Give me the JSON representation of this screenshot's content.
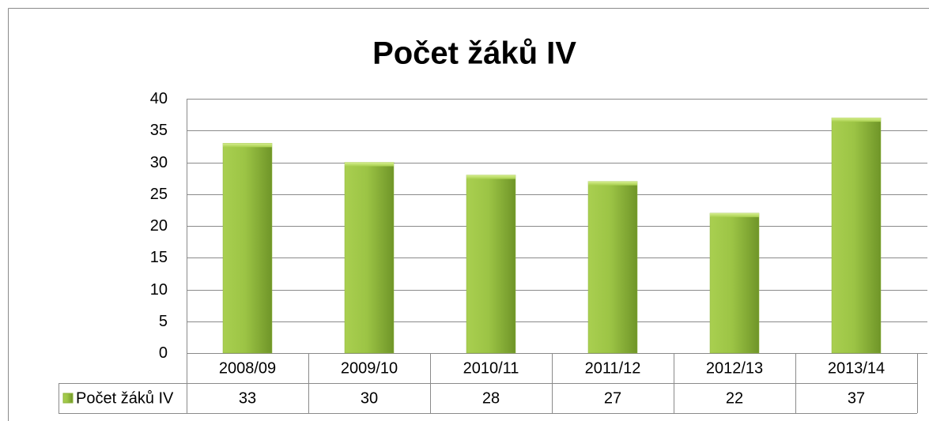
{
  "chart_data": {
    "type": "bar",
    "title": "Počet žáků IV",
    "categories": [
      "2008/09",
      "2009/10",
      "2010/11",
      "2011/12",
      "2012/13",
      "2013/14"
    ],
    "series": [
      {
        "name": "Počet žáků IV",
        "color": "#8db33a",
        "values": [
          33,
          30,
          28,
          27,
          22,
          37
        ]
      }
    ],
    "ylim": [
      0,
      40
    ],
    "yticks": [
      0,
      5,
      10,
      15,
      20,
      25,
      30,
      35,
      40
    ],
    "grid": true,
    "data_table": true
  }
}
